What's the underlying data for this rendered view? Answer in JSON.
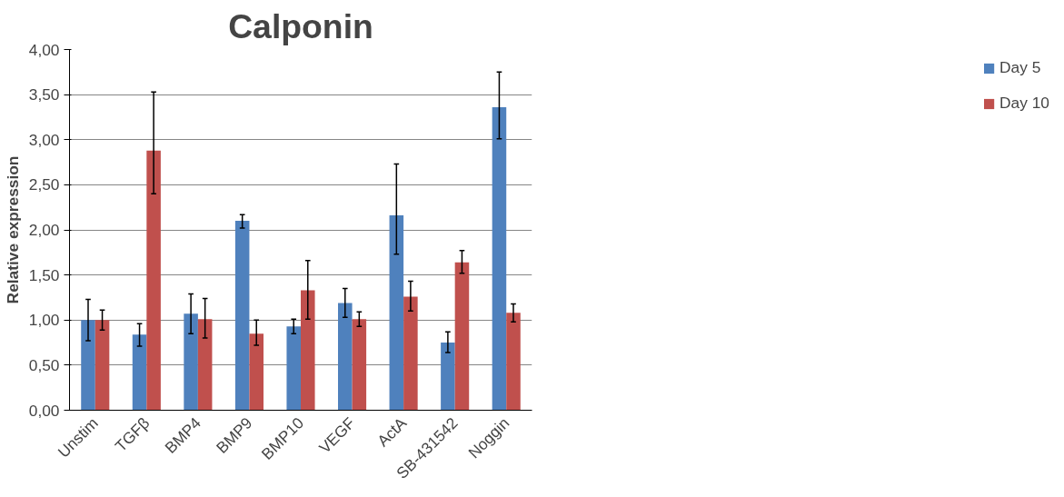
{
  "chart_data": {
    "type": "bar",
    "title": "Calponin",
    "ylabel": "Relative expression",
    "categories": [
      "Unstim",
      "TGFβ",
      "BMP4",
      "BMP9",
      "BMP10",
      "VEGF",
      "ActA",
      "SB-431542",
      "Noggin"
    ],
    "series": [
      {
        "name": "Day 5",
        "color": "#4f81bd",
        "values": [
          1.0,
          0.84,
          1.07,
          2.1,
          0.93,
          1.19,
          2.16,
          0.75,
          3.36
        ],
        "errors": [
          [
            0.77,
            1.23
          ],
          [
            0.71,
            0.96
          ],
          [
            0.85,
            1.29
          ],
          [
            2.02,
            2.17
          ],
          [
            0.85,
            1.01
          ],
          [
            1.03,
            1.35
          ],
          [
            1.73,
            2.73
          ],
          [
            0.64,
            0.87
          ],
          [
            3.01,
            3.75
          ]
        ]
      },
      {
        "name": "Day 10",
        "color": "#c0504d",
        "values": [
          1.0,
          2.88,
          1.01,
          0.85,
          1.33,
          1.01,
          1.26,
          1.64,
          1.08
        ],
        "errors": [
          [
            0.89,
            1.11
          ],
          [
            2.4,
            3.53
          ],
          [
            0.8,
            1.24
          ],
          [
            0.72,
            1.0
          ],
          [
            1.01,
            1.66
          ],
          [
            0.93,
            1.09
          ],
          [
            1.1,
            1.43
          ],
          [
            1.52,
            1.77
          ],
          [
            0.98,
            1.18
          ]
        ]
      }
    ],
    "ylim": [
      0,
      4
    ],
    "yticks": [
      {
        "value": 0,
        "label": "0,00"
      },
      {
        "value": 0.5,
        "label": "0,50"
      },
      {
        "value": 1,
        "label": "1,00"
      },
      {
        "value": 1.5,
        "label": "1,50"
      },
      {
        "value": 2,
        "label": "2,00"
      },
      {
        "value": 2.5,
        "label": "2,50"
      },
      {
        "value": 3,
        "label": "3,00"
      },
      {
        "value": 3.5,
        "label": "3,50"
      },
      {
        "value": 4,
        "label": "4,00"
      }
    ],
    "grid": "y",
    "legend": "right"
  }
}
